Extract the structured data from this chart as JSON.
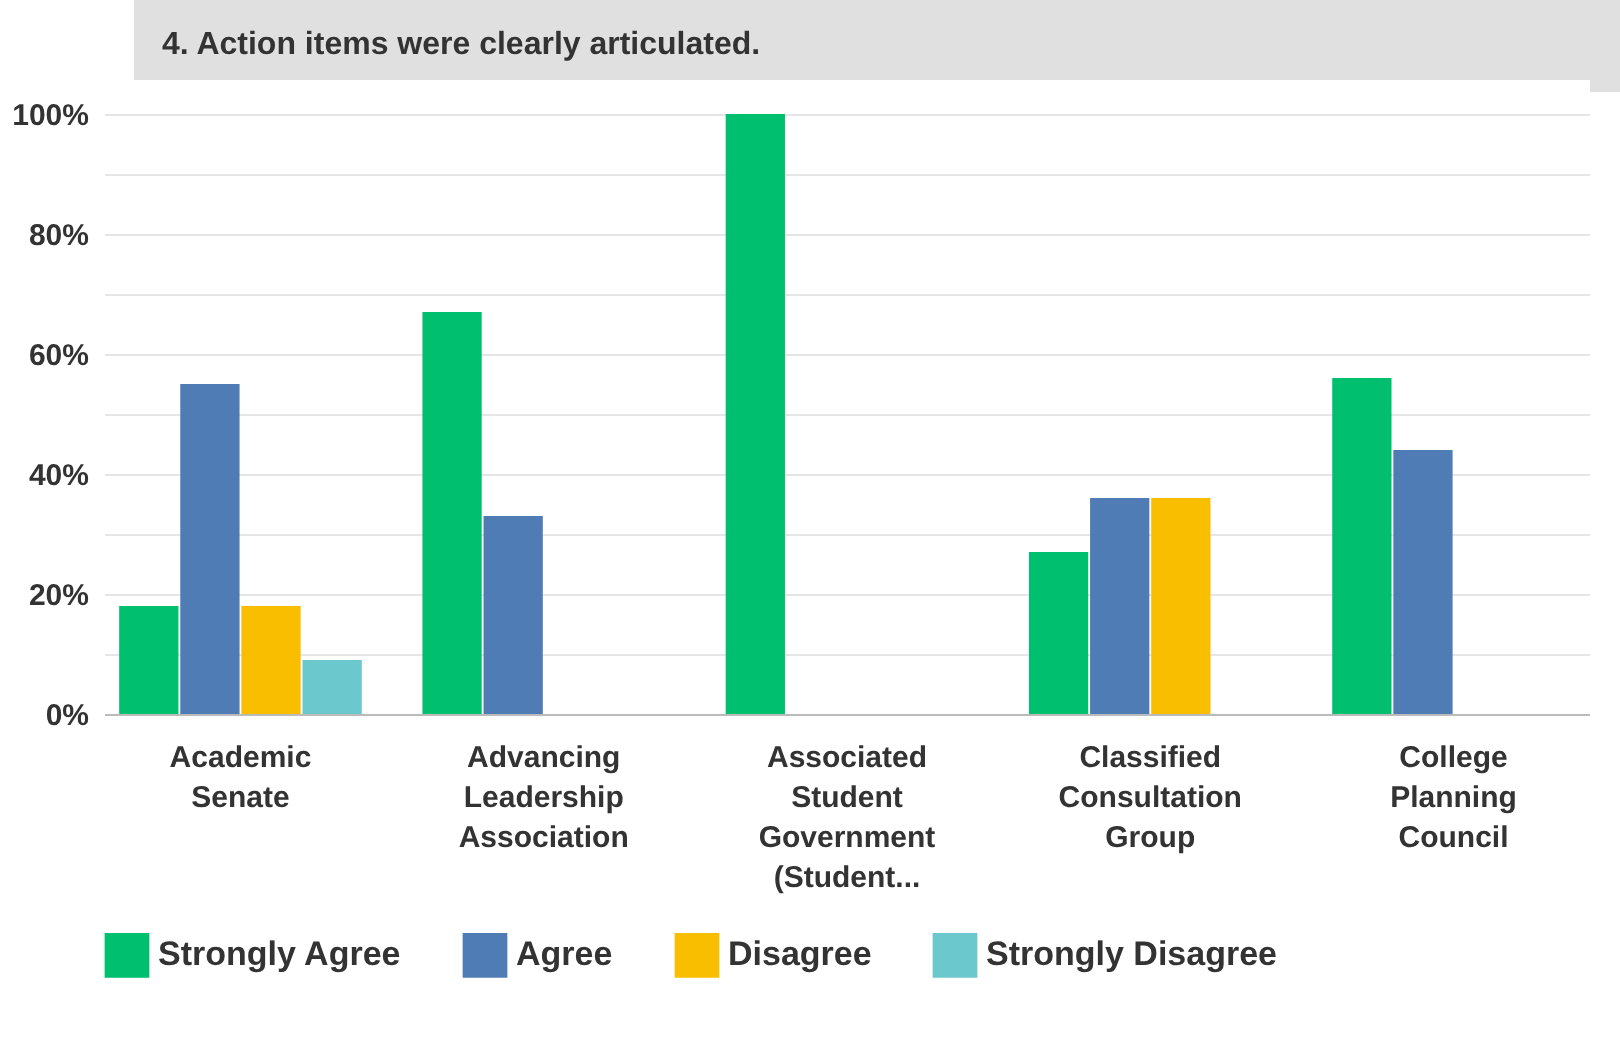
{
  "chart_data": {
    "type": "bar",
    "title": "4. Action items were clearly articulated.",
    "categories": [
      "Academic Senate",
      "Advancing Leadership Association",
      "Associated Student Government (Student...",
      "Classified Consultation Group",
      "College Planning Council"
    ],
    "series": [
      {
        "name": "Strongly Agree",
        "color": "#00bf6f",
        "values": [
          18,
          67,
          100,
          27,
          56
        ]
      },
      {
        "name": "Agree",
        "color": "#507cb6",
        "values": [
          55,
          33,
          0,
          36,
          44
        ]
      },
      {
        "name": "Disagree",
        "color": "#f9be00",
        "values": [
          18,
          0,
          0,
          36,
          0
        ]
      },
      {
        "name": "Strongly Disagree",
        "color": "#6bc8cd",
        "values": [
          9,
          0,
          0,
          0,
          0
        ]
      }
    ],
    "ylim": [
      0,
      100
    ],
    "yticks": [
      {
        "value": 0,
        "label": "0%"
      },
      {
        "value": 10,
        "label": null
      },
      {
        "value": 20,
        "label": "20%"
      },
      {
        "value": 30,
        "label": null
      },
      {
        "value": 40,
        "label": "40%"
      },
      {
        "value": 50,
        "label": null
      },
      {
        "value": 60,
        "label": "60%"
      },
      {
        "value": 70,
        "label": null
      },
      {
        "value": 80,
        "label": "80%"
      },
      {
        "value": 90,
        "label": null
      },
      {
        "value": 100,
        "label": "100%"
      }
    ],
    "grid": "y",
    "legend": "bottom"
  }
}
